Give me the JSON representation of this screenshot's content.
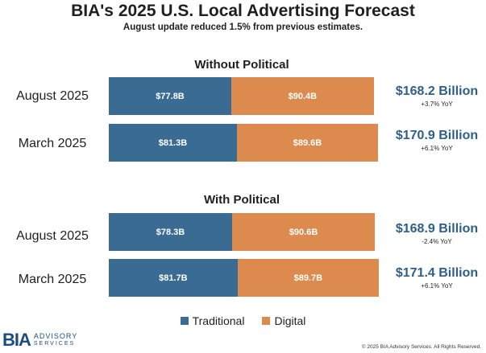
{
  "colors": {
    "traditional": "#3a6b92",
    "digital": "#dd8a4e",
    "total": "#2e5f8a"
  },
  "chart_data": {
    "type": "bar",
    "orientation": "horizontal",
    "stacked": true,
    "title": "BIA's 2025 U.S. Local Advertising Forecast",
    "subtitle": "August update reduced 1.5% from previous estimates.",
    "legend": {
      "position": "bottom",
      "entries": [
        "Traditional",
        "Digital"
      ]
    },
    "groups": [
      {
        "name": "Without Political",
        "rows": [
          {
            "label": "August 2025",
            "traditional": 77.8,
            "digital": 90.4,
            "traditional_label": "$77.8B",
            "digital_label": "$90.4B",
            "total_label": "$168.2 Billion",
            "yoy": "+3.7% YoY"
          },
          {
            "label": "March 2025",
            "traditional": 81.3,
            "digital": 89.6,
            "traditional_label": "$81.3B",
            "digital_label": "$89.6B",
            "total_label": "$170.9 Billion",
            "yoy": "+6.1% YoY"
          }
        ]
      },
      {
        "name": "With Political",
        "rows": [
          {
            "label": "August 2025",
            "traditional": 78.3,
            "digital": 90.6,
            "traditional_label": "$78.3B",
            "digital_label": "$90.6B",
            "total_label": "$168.9 Billion",
            "yoy": "-2.4% YoY"
          },
          {
            "label": "March 2025",
            "traditional": 81.7,
            "digital": 89.7,
            "traditional_label": "$81.7B",
            "digital_label": "$89.7B",
            "total_label": "$171.4 Billion",
            "yoy": "+6.1% YoY"
          }
        ]
      }
    ]
  },
  "branding": {
    "logo_main": "BIA",
    "logo_line1": "ADVISORY",
    "logo_line2": "SERVICES"
  },
  "footer": {
    "copyright": "© 2025 BIA Advisory Services. All Rights Reserved."
  }
}
